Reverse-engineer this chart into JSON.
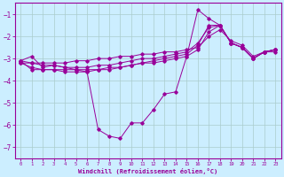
{
  "xlabel": "Windchill (Refroidissement éolien,°C)",
  "background_color": "#cceeff",
  "grid_color": "#aacccc",
  "line_color": "#990099",
  "xlim": [
    -0.5,
    23.5
  ],
  "ylim": [
    -7.5,
    -0.5
  ],
  "yticks": [
    -7,
    -6,
    -5,
    -4,
    -3,
    -2,
    -1
  ],
  "xticks": [
    0,
    1,
    2,
    3,
    4,
    5,
    6,
    7,
    8,
    9,
    10,
    11,
    12,
    13,
    14,
    15,
    16,
    17,
    18,
    19,
    20,
    21,
    22,
    23
  ],
  "y_zigzag": [
    -3.1,
    -2.9,
    -3.4,
    -3.3,
    -3.4,
    -3.5,
    -3.6,
    -6.2,
    -6.5,
    -6.6,
    -5.9,
    -5.9,
    -5.3,
    -4.6,
    -4.5,
    -2.9,
    -0.8,
    -1.2,
    -1.5,
    -2.3,
    -2.5,
    -3.0,
    -2.7,
    -2.7
  ],
  "y_linear1": [
    -3.2,
    -3.2,
    -3.2,
    -3.2,
    -3.2,
    -3.1,
    -3.1,
    -3.0,
    -3.0,
    -2.9,
    -2.9,
    -2.8,
    -2.8,
    -2.7,
    -2.7,
    -2.6,
    -2.5,
    -2.0,
    -1.7,
    -2.2,
    -2.4,
    -2.9,
    -2.7,
    -2.6
  ],
  "y_linear2": [
    -3.1,
    -3.2,
    -3.3,
    -3.3,
    -3.4,
    -3.4,
    -3.4,
    -3.3,
    -3.3,
    -3.2,
    -3.1,
    -3.0,
    -3.0,
    -2.9,
    -2.8,
    -2.7,
    -2.3,
    -1.6,
    -1.5,
    -2.3,
    -2.5,
    -3.0,
    -2.7,
    -2.6
  ],
  "y_linear3": [
    -3.2,
    -3.4,
    -3.5,
    -3.5,
    -3.5,
    -3.5,
    -3.5,
    -3.5,
    -3.4,
    -3.4,
    -3.3,
    -3.2,
    -3.2,
    -3.1,
    -3.0,
    -2.9,
    -2.6,
    -1.8,
    -1.5,
    -2.3,
    -2.5,
    -3.0,
    -2.7,
    -2.6
  ],
  "y_linear4": [
    -3.1,
    -3.5,
    -3.5,
    -3.5,
    -3.6,
    -3.6,
    -3.6,
    -3.5,
    -3.5,
    -3.4,
    -3.3,
    -3.2,
    -3.1,
    -3.0,
    -2.9,
    -2.8,
    -2.4,
    -1.5,
    -1.5,
    -2.3,
    -2.5,
    -3.0,
    -2.7,
    -2.6
  ]
}
